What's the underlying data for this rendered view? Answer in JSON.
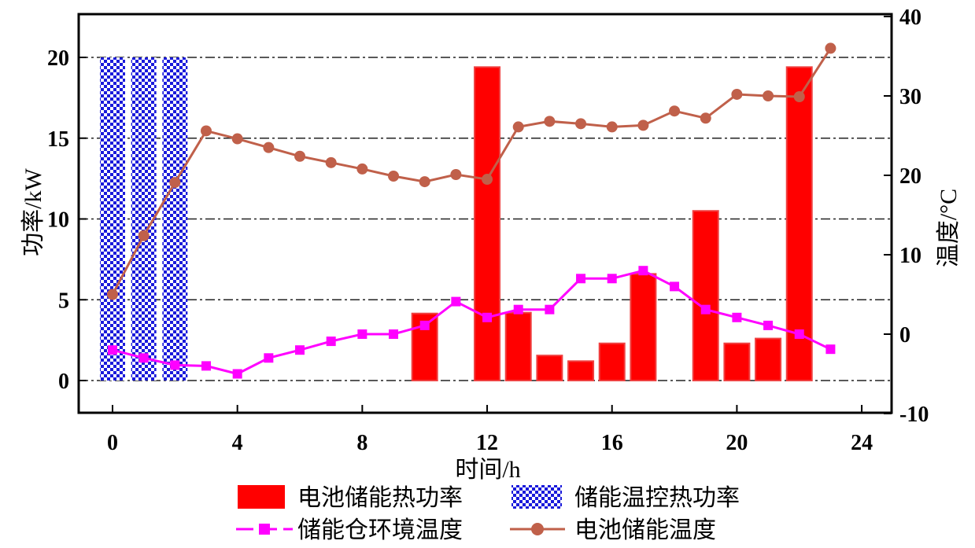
{
  "chart_data": {
    "type": "bar",
    "xlabel": "时间/h",
    "ylabel": "功率/kW",
    "y2label": "温度/°C",
    "xlim": [
      -1,
      25
    ],
    "ylim": [
      -2,
      22.5
    ],
    "y2lim": [
      -10,
      40
    ],
    "xticks": [
      0,
      4,
      8,
      12,
      16,
      20,
      24
    ],
    "yticks": [
      0,
      5,
      10,
      15,
      20
    ],
    "y2ticks": [
      -10,
      0,
      10,
      20,
      30,
      40
    ],
    "grid": "horizontal dash-dot",
    "legend_position": "bottom",
    "colors": {
      "battery_heat": "#ff0000",
      "thermal_control": "#1a1adb",
      "cabin_temp": "#ff00ff",
      "battery_temp": "#c0604a"
    },
    "series": [
      {
        "name": "电池储能热功率",
        "type": "bar",
        "axis": "left",
        "x": [
          10,
          12,
          13,
          14,
          15,
          16,
          17,
          19,
          20,
          21,
          22
        ],
        "values": [
          4.15,
          19.4,
          4.2,
          1.55,
          1.2,
          2.3,
          6.6,
          10.5,
          2.3,
          2.6,
          19.4
        ]
      },
      {
        "name": "储能温控热功率",
        "type": "bar",
        "axis": "left",
        "x": [
          0,
          1,
          2
        ],
        "values": [
          20,
          20,
          20
        ]
      },
      {
        "name": "储能仓环境温度",
        "type": "line",
        "axis": "right",
        "x": [
          0,
          1,
          2,
          3,
          4,
          5,
          6,
          7,
          8,
          9,
          10,
          11,
          12,
          13,
          14,
          15,
          16,
          17,
          18,
          19,
          20,
          21,
          22,
          23
        ],
        "values": [
          -2,
          -3,
          -3.9,
          -4,
          -5,
          -3,
          -2,
          -0.9,
          0,
          0,
          1.1,
          4.1,
          2.1,
          3.1,
          3.1,
          7,
          7,
          8,
          6,
          3.1,
          2.1,
          1.1,
          0,
          -1.9
        ]
      },
      {
        "name": "电池储能温度",
        "type": "line",
        "axis": "right",
        "x": [
          0,
          1,
          2,
          3,
          4,
          5,
          6,
          7,
          8,
          9,
          10,
          11,
          12,
          13,
          14,
          15,
          16,
          17,
          18,
          19,
          20,
          21,
          22,
          23
        ],
        "values": [
          5,
          12.4,
          19.1,
          25.6,
          24.6,
          23.5,
          22.4,
          21.6,
          20.8,
          19.9,
          19.2,
          20.1,
          19.5,
          26.1,
          26.8,
          26.5,
          26.1,
          26.3,
          28.1,
          27.2,
          30.2,
          30,
          29.9,
          36
        ]
      }
    ]
  }
}
